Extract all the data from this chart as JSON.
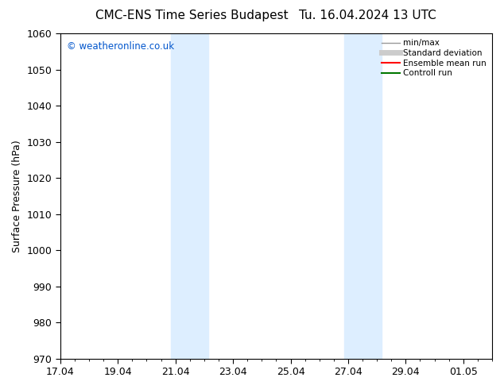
{
  "title": "CMC-ENS Time Series Budapest",
  "title2": "Tu. 16.04.2024 13 UTC",
  "ylabel": "Surface Pressure (hPa)",
  "ylim": [
    970,
    1060
  ],
  "yticks": [
    970,
    980,
    990,
    1000,
    1010,
    1020,
    1030,
    1040,
    1050,
    1060
  ],
  "xtick_labels": [
    "17.04",
    "19.04",
    "21.04",
    "23.04",
    "25.04",
    "27.04",
    "29.04",
    "01.05"
  ],
  "xtick_positions": [
    0,
    2,
    4,
    6,
    8,
    10,
    12,
    14
  ],
  "xlim": [
    0,
    15
  ],
  "shaded_regions": [
    {
      "x_start": 3.85,
      "x_end": 5.15,
      "color": "#ddeeff"
    },
    {
      "x_start": 9.85,
      "x_end": 11.15,
      "color": "#ddeeff"
    }
  ],
  "watermark": "© weatheronline.co.uk",
  "watermark_color": "#0055cc",
  "legend_entries": [
    {
      "label": "min/max",
      "color": "#999999",
      "lw": 1.0
    },
    {
      "label": "Standard deviation",
      "color": "#cccccc",
      "lw": 5
    },
    {
      "label": "Ensemble mean run",
      "color": "#ff0000",
      "lw": 1.5
    },
    {
      "label": "Controll run",
      "color": "#007700",
      "lw": 1.5
    }
  ],
  "bg_color": "#ffffff",
  "font_color": "#000000",
  "title_fontsize": 11,
  "axis_fontsize": 9,
  "ylabel_fontsize": 9
}
